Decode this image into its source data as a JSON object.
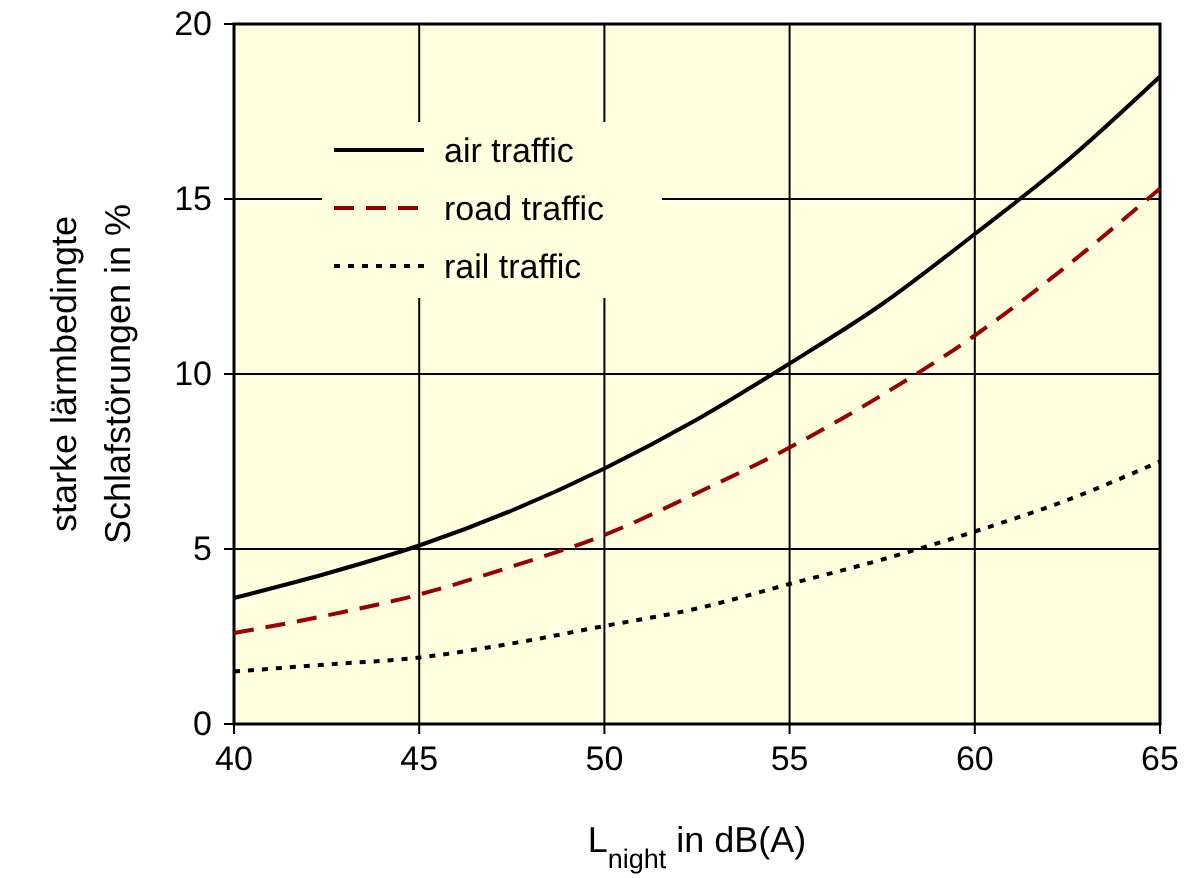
{
  "chart_data": {
    "type": "line",
    "xlabel": "L$_{night}$ in dB(A)",
    "ylabel": "starke lärmbedingte\nSchlafstörungen in %",
    "x": [
      40,
      42.5,
      45,
      47.5,
      50,
      52.5,
      55,
      57.5,
      60,
      62.5,
      65
    ],
    "series": [
      {
        "name": "air traffic",
        "color": "#000000",
        "line_style": "solid",
        "values": [
          3.6,
          4.3,
          5.1,
          6.1,
          7.3,
          8.7,
          10.3,
          12.0,
          14.0,
          16.1,
          18.5
        ]
      },
      {
        "name": "road traffic",
        "color": "#990000",
        "line_style": "dashed",
        "values": [
          2.6,
          3.1,
          3.7,
          4.5,
          5.4,
          6.6,
          7.9,
          9.4,
          11.1,
          13.1,
          15.3
        ]
      },
      {
        "name": "rail traffic",
        "color": "#000000",
        "line_style": "dotted",
        "values": [
          1.5,
          1.7,
          1.9,
          2.3,
          2.8,
          3.3,
          4.0,
          4.7,
          5.5,
          6.4,
          7.5
        ]
      }
    ],
    "xlim": [
      40,
      65
    ],
    "xticks": [
      40,
      45,
      50,
      55,
      60,
      65
    ],
    "ylim": [
      0,
      20
    ],
    "yticks": [
      0,
      5,
      10,
      15,
      20
    ],
    "grid": true,
    "legend": "top left",
    "marker": "none"
  }
}
